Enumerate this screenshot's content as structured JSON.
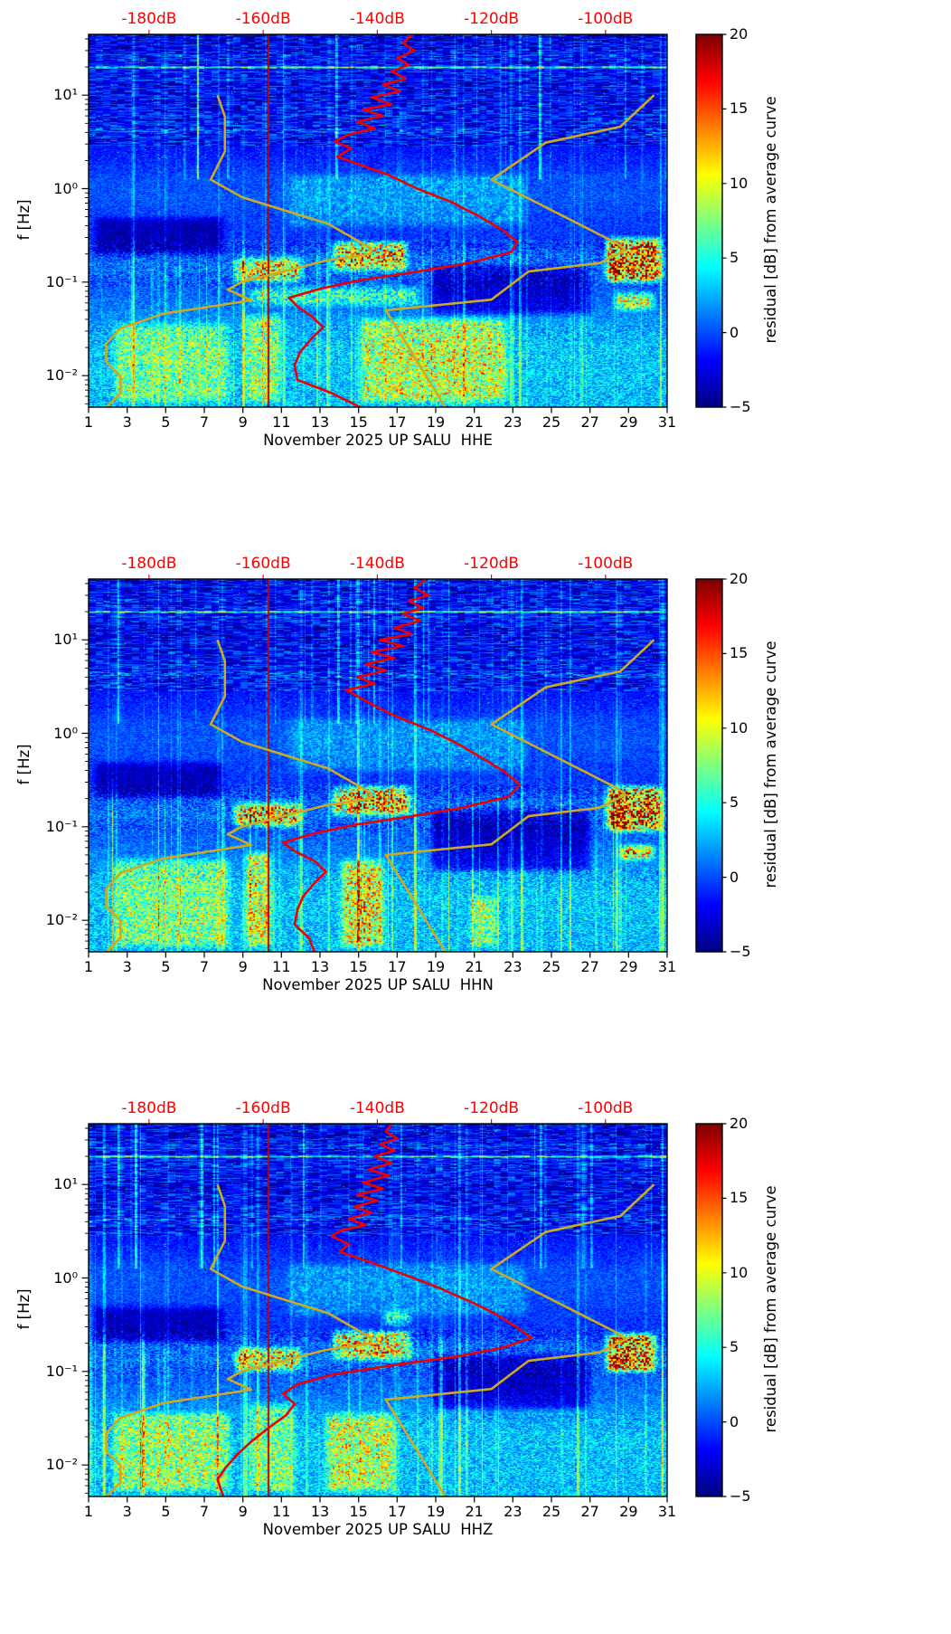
{
  "chart_data": {
    "type": "heatmap",
    "shared": {
      "ylabel": "f [Hz]",
      "day_range": [
        1,
        31
      ],
      "f_range_hz": [
        0.0046,
        44.7
      ],
      "day_ticks": [
        1,
        3,
        5,
        7,
        9,
        11,
        13,
        15,
        17,
        19,
        21,
        23,
        25,
        27,
        29,
        31
      ],
      "x_tick_labels": [
        "1",
        "3",
        "5",
        "7",
        "9",
        "11",
        "13",
        "15",
        "17",
        "19",
        "21",
        "23",
        "25",
        "27",
        "29",
        "31"
      ],
      "y_ticks": [
        {
          "f": 10,
          "label": "10¹"
        },
        {
          "f": 1,
          "label": "10⁰"
        },
        {
          "f": 0.1,
          "label": "10⁻¹"
        },
        {
          "f": 0.01,
          "label": "10⁻²"
        }
      ],
      "top_axis": {
        "color": "#ff0000",
        "db_range": [
          -190.6,
          -89.2
        ],
        "ticks": [
          -180,
          -160,
          -140,
          -120,
          -100
        ],
        "labels": [
          "-180dB",
          "-160dB",
          "-140dB",
          "-120dB",
          "-100dB"
        ]
      },
      "colorbar": {
        "label": "residual [dB] from average curve",
        "range": [
          -5,
          20
        ],
        "tick_values": [
          20,
          15,
          10,
          5,
          0,
          -5
        ],
        "tick_labels": [
          "20",
          "15",
          "10",
          "5",
          "0",
          "−5"
        ],
        "colormap": "jet"
      },
      "average_curve_color": "#ee0000",
      "red_marker_day": 10.3,
      "persistent_line_f_hz": 20,
      "noise_models": {
        "color": "#ccaa22",
        "nlnm_f_db": [
          [
            10,
            -168
          ],
          [
            5.9,
            -166.7
          ],
          [
            2.5,
            -166.7
          ],
          [
            1.25,
            -169.2
          ],
          [
            0.81,
            -163.7
          ],
          [
            0.42,
            -148.6
          ],
          [
            0.23,
            -141.1
          ],
          [
            0.2,
            -141.1
          ],
          [
            0.17,
            -149
          ],
          [
            0.1,
            -163.8
          ],
          [
            0.083,
            -166.2
          ],
          [
            0.064,
            -162.1
          ],
          [
            0.046,
            -177.5
          ],
          [
            0.032,
            -185
          ],
          [
            0.022,
            -187.5
          ],
          [
            0.014,
            -187.5
          ],
          [
            0.0099,
            -185
          ],
          [
            0.0065,
            -185
          ],
          [
            0.0046,
            -187.5
          ]
        ],
        "nhnm_f_db": [
          [
            10,
            -91.5
          ],
          [
            4.6,
            -97.4
          ],
          [
            3.1,
            -110.5
          ],
          [
            1.25,
            -120
          ],
          [
            0.26,
            -98
          ],
          [
            0.22,
            -96.5
          ],
          [
            0.16,
            -101
          ],
          [
            0.13,
            -113.5
          ],
          [
            0.065,
            -120
          ],
          [
            0.05,
            -138.5
          ],
          [
            0.0046,
            -128.1
          ]
        ]
      }
    },
    "panels": [
      {
        "channel": "HHE",
        "xlabel": "November 2025 UP SALU  HHE",
        "seed": 7,
        "average_curve_f_db": [
          [
            44,
            -134
          ],
          [
            36,
            -135.5
          ],
          [
            30,
            -133.5
          ],
          [
            25,
            -136.5
          ],
          [
            21,
            -134.5
          ],
          [
            18,
            -137.5
          ],
          [
            15,
            -135
          ],
          [
            13,
            -139
          ],
          [
            11,
            -136
          ],
          [
            9.5,
            -141
          ],
          [
            8,
            -137.5
          ],
          [
            7,
            -142.5
          ],
          [
            6,
            -139
          ],
          [
            5.2,
            -143.5
          ],
          [
            4.4,
            -140.5
          ],
          [
            3.8,
            -145
          ],
          [
            3.2,
            -147.5
          ],
          [
            2.7,
            -144.5
          ],
          [
            2.2,
            -147
          ],
          [
            1.8,
            -143
          ],
          [
            1.4,
            -138
          ],
          [
            1.0,
            -133
          ],
          [
            0.72,
            -127
          ],
          [
            0.5,
            -122
          ],
          [
            0.36,
            -118
          ],
          [
            0.27,
            -115.5
          ],
          [
            0.21,
            -116.5
          ],
          [
            0.16,
            -124
          ],
          [
            0.13,
            -133
          ],
          [
            0.105,
            -143
          ],
          [
            0.085,
            -150
          ],
          [
            0.068,
            -155.5
          ],
          [
            0.055,
            -154
          ],
          [
            0.043,
            -151.5
          ],
          [
            0.033,
            -149.5
          ],
          [
            0.025,
            -151.5
          ],
          [
            0.018,
            -153.5
          ],
          [
            0.013,
            -154.5
          ],
          [
            0.009,
            -154
          ],
          [
            0.0065,
            -148
          ],
          [
            0.0046,
            -143
          ]
        ],
        "hot_regions": [
          {
            "days": [
              8.3,
              12.3
            ],
            "f": [
              0.09,
              0.2
            ],
            "amp": 11
          },
          {
            "days": [
              13.4,
              17.8
            ],
            "f": [
              0.12,
              0.3
            ],
            "amp": 12
          },
          {
            "days": [
              27.6,
              31
            ],
            "f": [
              0.09,
              0.33
            ],
            "amp": 16
          },
          {
            "days": [
              28,
              30.6
            ],
            "f": [
              0.045,
              0.085
            ],
            "amp": 9
          },
          {
            "days": [
              14.8,
              23
            ],
            "f": [
              0.0046,
              0.045
            ],
            "amp": 6.5
          },
          {
            "days": [
              8.8,
              11.3
            ],
            "f": [
              0.0046,
              0.05
            ],
            "amp": 5.5
          },
          {
            "days": [
              2,
              8.6
            ],
            "f": [
              0.0046,
              0.04
            ],
            "amp": 4.5
          },
          {
            "days": [
              9,
              18.5
            ],
            "f": [
              0.05,
              0.1
            ],
            "amp": 5
          },
          {
            "days": [
              1,
              8.3
            ],
            "f": [
              0.17,
              0.55
            ],
            "amp": -3.5
          },
          {
            "days": [
              18.5,
              27.3
            ],
            "f": [
              0.04,
              0.17
            ],
            "amp": -3.8
          },
          {
            "days": [
              11,
              24
            ],
            "f": [
              0.35,
              1.6
            ],
            "amp": 2.2
          }
        ]
      },
      {
        "channel": "HHN",
        "xlabel": "November 2025 UP SALU  HHN",
        "seed": 19,
        "average_curve_f_db": [
          [
            44,
            -131.5
          ],
          [
            36,
            -133.5
          ],
          [
            30,
            -131
          ],
          [
            26,
            -134.5
          ],
          [
            22,
            -132
          ],
          [
            19,
            -135.5
          ],
          [
            16,
            -132.5
          ],
          [
            13.5,
            -137
          ],
          [
            11.5,
            -134
          ],
          [
            10,
            -139.5
          ],
          [
            8.6,
            -135.5
          ],
          [
            7.4,
            -141
          ],
          [
            6.4,
            -137
          ],
          [
            5.5,
            -142
          ],
          [
            4.7,
            -138.5
          ],
          [
            4.0,
            -143.5
          ],
          [
            3.4,
            -140.5
          ],
          [
            2.9,
            -145.5
          ],
          [
            2.4,
            -143
          ],
          [
            1.9,
            -140
          ],
          [
            1.5,
            -136.5
          ],
          [
            1.1,
            -131
          ],
          [
            0.78,
            -126
          ],
          [
            0.54,
            -121.5
          ],
          [
            0.38,
            -117.5
          ],
          [
            0.28,
            -115
          ],
          [
            0.21,
            -117
          ],
          [
            0.16,
            -125
          ],
          [
            0.13,
            -134
          ],
          [
            0.105,
            -144
          ],
          [
            0.085,
            -151
          ],
          [
            0.068,
            -156.5
          ],
          [
            0.055,
            -154.5
          ],
          [
            0.043,
            -151
          ],
          [
            0.033,
            -149
          ],
          [
            0.025,
            -151
          ],
          [
            0.018,
            -153
          ],
          [
            0.013,
            -154
          ],
          [
            0.009,
            -154.5
          ],
          [
            0.0065,
            -152
          ],
          [
            0.0046,
            -151
          ]
        ],
        "hot_regions": [
          {
            "days": [
              8.3,
              12.3
            ],
            "f": [
              0.09,
              0.2
            ],
            "amp": 12
          },
          {
            "days": [
              13.4,
              18
            ],
            "f": [
              0.12,
              0.3
            ],
            "amp": 12
          },
          {
            "days": [
              27.6,
              31
            ],
            "f": [
              0.08,
              0.3
            ],
            "amp": 16
          },
          {
            "days": [
              28.3,
              30.6
            ],
            "f": [
              0.04,
              0.07
            ],
            "amp": 11
          },
          {
            "days": [
              13.8,
              16.6
            ],
            "f": [
              0.0046,
              0.05
            ],
            "amp": 8
          },
          {
            "days": [
              8.8,
              10.8
            ],
            "f": [
              0.0046,
              0.06
            ],
            "amp": 7
          },
          {
            "days": [
              2,
              8.6
            ],
            "f": [
              0.0046,
              0.05
            ],
            "amp": 5
          },
          {
            "days": [
              20.5,
              22.5
            ],
            "f": [
              0.0046,
              0.02
            ],
            "amp": 5
          },
          {
            "days": [
              1,
              8.3
            ],
            "f": [
              0.18,
              0.55
            ],
            "amp": -3.2
          },
          {
            "days": [
              18.5,
              27.3
            ],
            "f": [
              0.03,
              0.17
            ],
            "amp": -4
          },
          {
            "days": [
              11,
              24
            ],
            "f": [
              0.35,
              1.6
            ],
            "amp": 2
          }
        ]
      },
      {
        "channel": "HHZ",
        "xlabel": "November 2025 UP SALU  HHZ",
        "seed": 31,
        "average_curve_f_db": [
          [
            44,
            -137.5
          ],
          [
            37,
            -138.5
          ],
          [
            31,
            -136.5
          ],
          [
            27,
            -139.5
          ],
          [
            23,
            -137
          ],
          [
            20,
            -140.5
          ],
          [
            17,
            -137.5
          ],
          [
            14.5,
            -141.5
          ],
          [
            12.5,
            -138
          ],
          [
            10.5,
            -142.5
          ],
          [
            9,
            -139
          ],
          [
            7.8,
            -143.5
          ],
          [
            6.7,
            -140
          ],
          [
            5.8,
            -144
          ],
          [
            5.0,
            -141
          ],
          [
            4.3,
            -145
          ],
          [
            3.7,
            -142
          ],
          [
            3.2,
            -146.5
          ],
          [
            2.8,
            -148
          ],
          [
            2.3,
            -145
          ],
          [
            1.9,
            -146.5
          ],
          [
            1.5,
            -141.5
          ],
          [
            1.1,
            -135.5
          ],
          [
            0.8,
            -129.5
          ],
          [
            0.57,
            -124
          ],
          [
            0.42,
            -119.5
          ],
          [
            0.31,
            -116
          ],
          [
            0.23,
            -113
          ],
          [
            0.18,
            -118
          ],
          [
            0.145,
            -126
          ],
          [
            0.115,
            -138
          ],
          [
            0.092,
            -148
          ],
          [
            0.073,
            -154
          ],
          [
            0.058,
            -156.5
          ],
          [
            0.045,
            -154.5
          ],
          [
            0.034,
            -156
          ],
          [
            0.025,
            -159
          ],
          [
            0.018,
            -162
          ],
          [
            0.013,
            -164.5
          ],
          [
            0.0095,
            -166.5
          ],
          [
            0.007,
            -168
          ],
          [
            0.0046,
            -167
          ]
        ],
        "hot_regions": [
          {
            "days": [
              8.3,
              12.3
            ],
            "f": [
              0.09,
              0.2
            ],
            "amp": 10
          },
          {
            "days": [
              13.4,
              18
            ],
            "f": [
              0.12,
              0.3
            ],
            "amp": 11
          },
          {
            "days": [
              27.6,
              30.7
            ],
            "f": [
              0.09,
              0.28
            ],
            "amp": 16
          },
          {
            "days": [
              16,
              18
            ],
            "f": [
              0.28,
              0.5
            ],
            "amp": 6
          },
          {
            "days": [
              13,
              17.2
            ],
            "f": [
              0.0046,
              0.04
            ],
            "amp": 6.5
          },
          {
            "days": [
              2,
              8.6
            ],
            "f": [
              0.0046,
              0.04
            ],
            "amp": 5.5
          },
          {
            "days": [
              9,
              12
            ],
            "f": [
              0.0046,
              0.05
            ],
            "amp": 5
          },
          {
            "days": [
              1,
              8.3
            ],
            "f": [
              0.18,
              0.55
            ],
            "amp": -3.2
          },
          {
            "days": [
              18.5,
              27.3
            ],
            "f": [
              0.035,
              0.17
            ],
            "amp": -4
          },
          {
            "days": [
              11,
              24
            ],
            "f": [
              0.35,
              1.6
            ],
            "amp": 2
          }
        ]
      }
    ]
  }
}
